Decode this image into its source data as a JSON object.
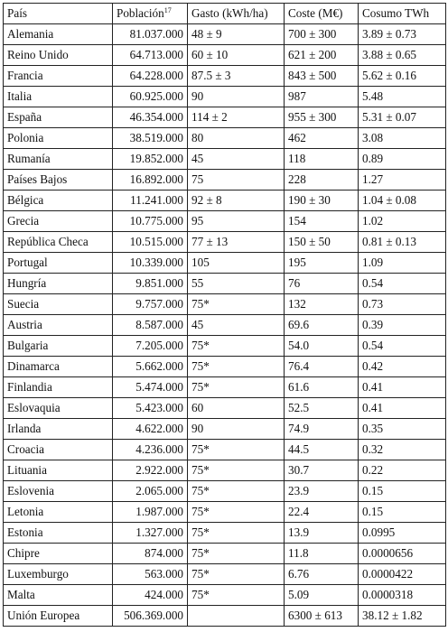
{
  "headers": {
    "country": "País",
    "population": "Población",
    "population_note": "17",
    "spending": "Gasto (kWh/ha)",
    "cost": "Coste (M€)",
    "consumption": "Cosumo TWh"
  },
  "rows": [
    {
      "country": "Alemania",
      "population": "81.037.000",
      "spending": "48 ± 9",
      "cost": "700 ± 300",
      "consumption": "3.89 ± 0.73"
    },
    {
      "country": "Reino Unido",
      "population": "64.713.000",
      "spending": "60 ± 10",
      "cost": "621 ± 200",
      "consumption": "3.88 ± 0.65"
    },
    {
      "country": "Francia",
      "population": "64.228.000",
      "spending": "87.5 ± 3",
      "cost": "843 ± 500",
      "consumption": "5.62 ± 0.16"
    },
    {
      "country": "Italia",
      "population": "60.925.000",
      "spending": "90",
      "cost": "987",
      "consumption": "5.48"
    },
    {
      "country": "España",
      "population": "46.354.000",
      "spending": "114 ± 2",
      "cost": "955 ± 300",
      "consumption": "5.31 ± 0.07"
    },
    {
      "country": "Polonia",
      "population": "38.519.000",
      "spending": "80",
      "cost": "462",
      "consumption": "3.08"
    },
    {
      "country": "Rumanía",
      "population": "19.852.000",
      "spending": "45",
      "cost": "118",
      "consumption": "0.89"
    },
    {
      "country": "Países Bajos",
      "population": "16.892.000",
      "spending": "75",
      "cost": "228",
      "consumption": "1.27"
    },
    {
      "country": "Bélgica",
      "population": "11.241.000",
      "spending": "92 ± 8",
      "cost": "190 ± 30",
      "consumption": "1.04 ± 0.08"
    },
    {
      "country": "Grecia",
      "population": "10.775.000",
      "spending": "95",
      "cost": "154",
      "consumption": "1.02"
    },
    {
      "country": "República Checa",
      "population": "10.515.000",
      "spending": "77 ± 13",
      "cost": "150 ± 50",
      "consumption": "0.81 ± 0.13"
    },
    {
      "country": "Portugal",
      "population": "10.339.000",
      "spending": "105",
      "cost": "195",
      "consumption": "1.09"
    },
    {
      "country": "Hungría",
      "population": "9.851.000",
      "spending": "55",
      "cost": "76",
      "consumption": "0.54"
    },
    {
      "country": "Suecia",
      "population": "9.757.000",
      "spending": "75*",
      "cost": "132",
      "consumption": "0.73"
    },
    {
      "country": "Austria",
      "population": "8.587.000",
      "spending": "45",
      "cost": "69.6",
      "consumption": "0.39"
    },
    {
      "country": "Bulgaria",
      "population": "7.205.000",
      "spending": "75*",
      "cost": "54.0",
      "consumption": "0.54"
    },
    {
      "country": "Dinamarca",
      "population": "5.662.000",
      "spending": "75*",
      "cost": "76.4",
      "consumption": "0.42"
    },
    {
      "country": "Finlandia",
      "population": "5.474.000",
      "spending": "75*",
      "cost": "61.6",
      "consumption": "0.41"
    },
    {
      "country": "Eslovaquia",
      "population": "5.423.000",
      "spending": "60",
      "cost": "52.5",
      "consumption": "0.41"
    },
    {
      "country": "Irlanda",
      "population": "4.622.000",
      "spending": "90",
      "cost": "74.9",
      "consumption": "0.35"
    },
    {
      "country": "Croacia",
      "population": "4.236.000",
      "spending": "75*",
      "cost": "44.5",
      "consumption": "0.32"
    },
    {
      "country": "Lituania",
      "population": "2.922.000",
      "spending": "75*",
      "cost": "30.7",
      "consumption": "0.22"
    },
    {
      "country": "Eslovenia",
      "population": "2.065.000",
      "spending": "75*",
      "cost": "23.9",
      "consumption": "0.15"
    },
    {
      "country": "Letonia",
      "population": "1.987.000",
      "spending": "75*",
      "cost": "22.4",
      "consumption": "0.15"
    },
    {
      "country": "Estonia",
      "population": "1.327.000",
      "spending": "75*",
      "cost": "13.9",
      "consumption": "0.0995"
    },
    {
      "country": "Chipre",
      "population": "874.000",
      "spending": "75*",
      "cost": "11.8",
      "consumption": "0.0000656"
    },
    {
      "country": "Luxemburgo",
      "population": "563.000",
      "spending": "75*",
      "cost": "6.76",
      "consumption": "0.0000422"
    },
    {
      "country": "Malta",
      "population": "424.000",
      "spending": "75*",
      "cost": "5.09",
      "consumption": "0.0000318"
    },
    {
      "country": "Unión Europea",
      "population": "506.369.000",
      "spending": "",
      "cost": "6300 ± 613",
      "consumption": "38.12 ± 1.82"
    }
  ]
}
